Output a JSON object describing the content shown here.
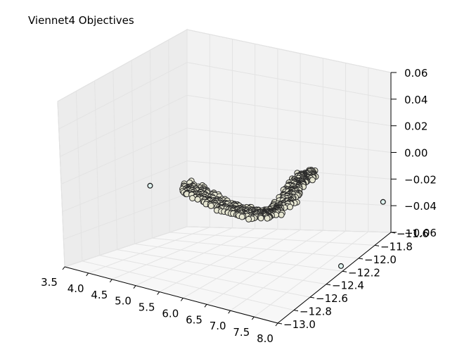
{
  "chart_data": {
    "type": "scatter3d",
    "title": "Viennet4 Objectives",
    "x_ticks": [
      "3.5",
      "4.0",
      "4.5",
      "5.0",
      "5.5",
      "6.0",
      "6.5",
      "7.0",
      "7.5",
      "8.0"
    ],
    "y_ticks": [
      "−13.0",
      "−12.8",
      "−12.6",
      "−12.4",
      "−12.2",
      "−12.0",
      "−11.8",
      "−11.6"
    ],
    "z_ticks": [
      "−0.06",
      "−0.04",
      "−0.02",
      "0.00",
      "0.02",
      "0.04",
      "0.06"
    ],
    "xlim": [
      3.5,
      8.0
    ],
    "ylim": [
      -13.0,
      -11.6
    ],
    "zlim": [
      -0.06,
      0.06
    ],
    "grid": true,
    "outlier_points": [
      {
        "x": 3.6,
        "y": -12.05,
        "z": -0.02
      },
      {
        "x": 7.9,
        "y": -11.7,
        "z": 0.0
      },
      {
        "x": 7.7,
        "y": -12.1,
        "z": -0.04
      }
    ],
    "front_curve": [
      {
        "x": 4.3,
        "y": -12.0,
        "z": -0.015
      },
      {
        "x": 4.6,
        "y": -12.0,
        "z": -0.018
      },
      {
        "x": 5.0,
        "y": -12.0,
        "z": -0.022
      },
      {
        "x": 5.4,
        "y": -12.0,
        "z": -0.023
      },
      {
        "x": 5.8,
        "y": -12.0,
        "z": -0.022
      },
      {
        "x": 6.1,
        "y": -12.0,
        "z": -0.018
      },
      {
        "x": 6.4,
        "y": -12.0,
        "z": -0.008
      },
      {
        "x": 6.6,
        "y": -12.0,
        "z": 0.004
      },
      {
        "x": 6.75,
        "y": -12.0,
        "z": 0.012
      },
      {
        "x": 6.9,
        "y": -12.0,
        "z": 0.018
      }
    ]
  }
}
